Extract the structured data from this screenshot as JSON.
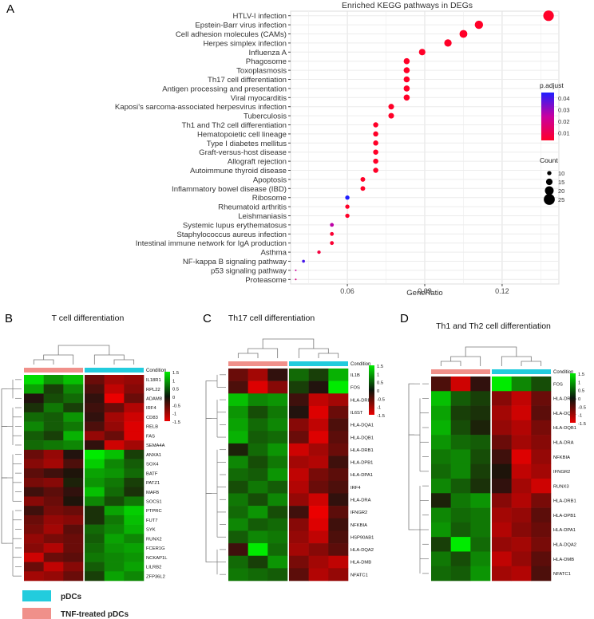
{
  "panel_labels": {
    "a": "A",
    "b": "B",
    "c": "C",
    "d": "D"
  },
  "chart_data": [
    {
      "type": "scatter",
      "title": "Enriched KEGG pathways in DEGs",
      "xlabel": "GeneRatio",
      "ylabel": "",
      "x_ticks": [
        0.06,
        0.09,
        0.12
      ],
      "x_tick_labels": [
        "0.06",
        "0.09",
        "0.12"
      ],
      "xlim": [
        0.038,
        0.142
      ],
      "grid": true,
      "legend_color_title": "p.adjust",
      "legend_color_ticks": [
        "0.04",
        "0.03",
        "0.02",
        "0.01"
      ],
      "legend_size_title": "Count",
      "legend_size_ticks": [
        "10",
        "15",
        "20",
        "25"
      ],
      "categories": [
        "HTLV-I infection",
        "Epstein-Barr virus infection",
        "Cell adhesion molecules (CAMs)",
        "Herpes simplex infection",
        "Influenza A",
        "Phagosome",
        "Toxoplasmosis",
        "Th17 cell differentiation",
        "Antigen processing and presentation",
        "Viral myocarditis",
        "Kaposi's sarcoma-associated herpesvirus infection",
        "Tuberculosis",
        "Th1 and Th2 cell differentiation",
        "Hematopoietic cell lineage",
        "Type I diabetes mellitus",
        "Graft-versus-host disease",
        "Allograft rejection",
        "Autoimmune thyroid disease",
        "Apoptosis",
        "Inflammatory bowel disease (IBD)",
        "Ribosome",
        "Rheumatoid arthritis",
        "Leishmaniasis",
        "Systemic lupus erythematosus",
        "Staphylococcus aureus infection",
        "Intestinal immune network for IgA production",
        "Asthma",
        "NF-kappa B signaling pathway",
        "p53 signaling pathway",
        "Proteasome"
      ],
      "gene_ratio": [
        0.138,
        0.111,
        0.105,
        0.099,
        0.089,
        0.083,
        0.083,
        0.083,
        0.083,
        0.083,
        0.077,
        0.077,
        0.071,
        0.071,
        0.071,
        0.071,
        0.071,
        0.071,
        0.066,
        0.066,
        0.06,
        0.06,
        0.06,
        0.054,
        0.054,
        0.054,
        0.049,
        0.043,
        0.04,
        0.04
      ],
      "count": [
        24,
        19,
        18,
        17,
        15,
        14,
        14,
        14,
        14,
        14,
        13,
        13,
        12,
        12,
        12,
        12,
        12,
        12,
        11,
        11,
        10,
        10,
        10,
        9,
        9,
        9,
        8,
        7,
        4,
        4
      ],
      "p_adjust": [
        0.002,
        0.002,
        0.002,
        0.002,
        0.002,
        0.002,
        0.002,
        0.002,
        0.002,
        0.002,
        0.002,
        0.002,
        0.002,
        0.002,
        0.002,
        0.002,
        0.002,
        0.002,
        0.002,
        0.002,
        0.045,
        0.002,
        0.002,
        0.025,
        0.004,
        0.004,
        0.006,
        0.04,
        0.022,
        0.018
      ]
    },
    {
      "type": "heatmap",
      "title": "T cell differentiation",
      "legend_title": "Condition",
      "scale_ticks": [
        "1.5",
        "1",
        "0.5",
        "0",
        "-0.5",
        "-1",
        "-1.5"
      ],
      "rows": [
        "IL18R1",
        "RPL22",
        "ADAM8",
        "IRF4",
        "CD83",
        "RELB",
        "FAS",
        "SEMA4A",
        "ANXA1",
        "SOX4",
        "BATF",
        "PATZ1",
        "MAFB",
        "SOCS1",
        "PTPRC",
        "FUT7",
        "SYK",
        "RUNX2",
        "FCER1G",
        "NCKAP1L",
        "LILRB2",
        "ZFP36L2"
      ],
      "values": [
        [
          1.4,
          0.9,
          1.2,
          -0.6,
          -1.0,
          -0.9
        ],
        [
          1.0,
          0.3,
          0.8,
          -0.4,
          -1.2,
          -0.8
        ],
        [
          -0.1,
          0.4,
          0.6,
          -0.2,
          -1.5,
          -0.6
        ],
        [
          0.2,
          0.7,
          0.3,
          -0.3,
          -0.6,
          -1.1
        ],
        [
          0.6,
          0.5,
          0.9,
          -0.2,
          -1.0,
          -1.3
        ],
        [
          0.8,
          0.5,
          0.7,
          -0.4,
          -0.9,
          -1.4
        ],
        [
          0.5,
          0.3,
          1.1,
          -0.9,
          -0.6,
          -1.4
        ],
        [
          0.6,
          0.7,
          0.8,
          -0.2,
          -1.3,
          -1.0
        ],
        [
          -0.6,
          -0.9,
          -0.1,
          1.5,
          1.2,
          0.3
        ],
        [
          -0.8,
          -1.0,
          -0.4,
          1.3,
          0.8,
          0.5
        ],
        [
          -0.5,
          -0.3,
          0.0,
          1.0,
          0.9,
          0.6
        ],
        [
          -0.7,
          -0.8,
          0.1,
          0.9,
          0.7,
          0.3
        ],
        [
          -0.3,
          -0.5,
          -0.2,
          1.2,
          0.6,
          0.2
        ],
        [
          -0.8,
          -0.6,
          0.0,
          0.8,
          0.4,
          0.7
        ],
        [
          -0.3,
          -0.7,
          -0.6,
          0.2,
          1.0,
          1.3
        ],
        [
          -0.6,
          -0.9,
          -0.8,
          0.2,
          0.7,
          1.2
        ],
        [
          -0.7,
          -1.0,
          -0.5,
          0.6,
          0.8,
          1.1
        ],
        [
          -0.9,
          -0.7,
          -0.6,
          0.5,
          1.0,
          0.8
        ],
        [
          -0.8,
          -1.1,
          -0.6,
          0.6,
          0.9,
          1.0
        ],
        [
          -1.3,
          -0.6,
          -0.5,
          0.7,
          0.8,
          0.9
        ],
        [
          -0.6,
          -1.2,
          -0.8,
          0.5,
          0.8,
          1.0
        ],
        [
          -1.0,
          -0.9,
          -0.6,
          0.3,
          1.0,
          0.8
        ]
      ]
    },
    {
      "type": "heatmap",
      "title": "Th17 cell differentiation",
      "legend_title": "Condition",
      "scale_ticks": [
        "1.5",
        "1",
        "0.5",
        "0",
        "-0.5",
        "-1",
        "-1.5"
      ],
      "rows": [
        "IL1B",
        "FOS",
        "HLA-DRB5",
        "IL6ST",
        "HLA-DQA1",
        "HLA-DQB1",
        "HLA-DRB1",
        "HLA-DPB1",
        "HLA-DPA1",
        "IRF4",
        "HLA-DRA",
        "IFNGR2",
        "NFKBIA",
        "HSP90AB1",
        "HLA-DQA2",
        "HLA-DMB",
        "NFATC1"
      ],
      "values": [
        [
          -0.6,
          -1.0,
          -0.2,
          0.6,
          0.3,
          1.1
        ],
        [
          -0.4,
          -1.4,
          -0.8,
          0.3,
          -0.1,
          1.6
        ],
        [
          1.2,
          0.8,
          0.9,
          -0.3,
          -1.2,
          -1.0
        ],
        [
          0.9,
          0.4,
          0.7,
          -0.1,
          -1.4,
          -0.6
        ],
        [
          1.0,
          0.6,
          0.8,
          -0.8,
          -1.2,
          -0.4
        ],
        [
          1.1,
          0.5,
          0.6,
          -0.6,
          -1.4,
          -0.5
        ],
        [
          0.1,
          0.6,
          0.9,
          -1.3,
          -1.0,
          -0.6
        ],
        [
          0.8,
          0.4,
          0.7,
          -1.0,
          -1.1,
          -0.3
        ],
        [
          0.6,
          0.5,
          0.9,
          -1.2,
          -0.7,
          -0.5
        ],
        [
          0.4,
          0.7,
          0.5,
          -1.1,
          -0.6,
          -0.4
        ],
        [
          0.7,
          0.4,
          0.8,
          -0.9,
          -1.3,
          -0.2
        ],
        [
          0.6,
          0.9,
          0.4,
          -0.3,
          -1.5,
          -0.5
        ],
        [
          0.8,
          0.5,
          0.6,
          -0.8,
          -1.4,
          -0.3
        ],
        [
          0.5,
          0.8,
          0.7,
          -0.9,
          -1.2,
          -0.4
        ],
        [
          -0.3,
          1.5,
          0.6,
          -1.0,
          -0.8,
          -0.5
        ],
        [
          0.6,
          0.3,
          0.9,
          -0.7,
          -1.0,
          -1.2
        ],
        [
          0.7,
          0.6,
          0.5,
          -0.5,
          -1.1,
          -0.9
        ]
      ]
    },
    {
      "type": "heatmap",
      "title": "Th1 and Th2 cell differentiation",
      "legend_title": "Condition",
      "scale_ticks": [
        "1.5",
        "1",
        "0.5",
        "0",
        "-0.5",
        "-1",
        "-1.5"
      ],
      "rows": [
        "FOS",
        "HLA-DRB5",
        "HLA-DQA1",
        "HLA-DQB1",
        "HLA-DRA",
        "NFKBIA",
        "IFNGR2",
        "RUNX3",
        "HLA-DRB1",
        "HLA-DPB1",
        "HLA-DPA1",
        "HLA-DQA2",
        "HLA-DMB",
        "NFATC1"
      ],
      "values": [
        [
          -0.4,
          -1.3,
          -0.2,
          1.5,
          0.8,
          0.4
        ],
        [
          1.2,
          0.5,
          0.3,
          -0.8,
          -1.2,
          -0.6
        ],
        [
          1.0,
          0.3,
          0.2,
          -1.0,
          -1.3,
          -0.5
        ],
        [
          1.1,
          0.4,
          0.1,
          -0.9,
          -1.1,
          -0.7
        ],
        [
          0.9,
          0.6,
          0.5,
          -0.6,
          -1.0,
          -0.8
        ],
        [
          0.7,
          0.8,
          0.4,
          -0.3,
          -1.4,
          -0.9
        ],
        [
          0.6,
          0.8,
          0.3,
          0.0,
          -1.2,
          -1.0
        ],
        [
          0.8,
          0.5,
          0.2,
          -0.2,
          -1.0,
          -1.3
        ],
        [
          0.1,
          0.7,
          0.9,
          -0.8,
          -1.1,
          -0.7
        ],
        [
          0.8,
          0.6,
          0.7,
          -1.0,
          -0.9,
          -0.5
        ],
        [
          0.9,
          0.5,
          0.7,
          -1.1,
          -0.8,
          -0.6
        ],
        [
          0.3,
          1.5,
          0.6,
          -0.9,
          -1.0,
          -0.7
        ],
        [
          0.7,
          0.4,
          0.8,
          -1.2,
          -0.9,
          -0.5
        ],
        [
          0.6,
          0.5,
          0.9,
          -1.0,
          -1.1,
          -0.4
        ]
      ]
    }
  ],
  "condition_legend": [
    {
      "label": "pDCs",
      "color": "#22CCDD"
    },
    {
      "label": "TNF-treated pDCs",
      "color": "#F0908A"
    }
  ]
}
